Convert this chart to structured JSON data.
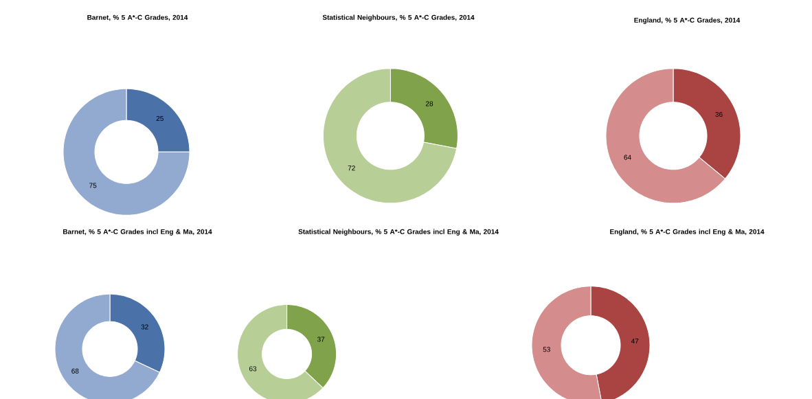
{
  "chart_data": [
    {
      "type": "donut",
      "title": "Barnet, % 5 A*-C Grades, 2014",
      "categories": [
        null,
        null
      ],
      "values": [
        25,
        75
      ],
      "colors": [
        "#4a72a8",
        "#92a9d0"
      ],
      "data_labels": true
    },
    {
      "type": "donut",
      "title": "Statistical Neighbours, % 5 A*-C Grades, 2014",
      "categories": [
        null,
        null
      ],
      "values": [
        28,
        72
      ],
      "colors": [
        "#7fa24a",
        "#b7cf96"
      ],
      "data_labels": true
    },
    {
      "type": "donut",
      "title": "England, % 5 A*-C Grades, 2014",
      "categories": [
        null,
        null
      ],
      "values": [
        36,
        64
      ],
      "colors": [
        "#a94442",
        "#d48d8c"
      ],
      "data_labels": true
    },
    {
      "type": "donut",
      "title": "Barnet, % 5 A*-C Grades incl Eng & Ma, 2014",
      "categories": [
        null,
        null
      ],
      "values": [
        32,
        68
      ],
      "colors": [
        "#4a72a8",
        "#92a9d0"
      ],
      "data_labels": true
    },
    {
      "type": "donut",
      "title": "Statistical Neighbours, % 5 A*-C Grades incl Eng & Ma, 2014",
      "categories": [
        null,
        null
      ],
      "values": [
        37,
        63
      ],
      "colors": [
        "#7fa24a",
        "#b7cf96"
      ],
      "data_labels": true
    },
    {
      "type": "donut",
      "title": "England, % 5 A*-C Grades incl Eng & Ma, 2014",
      "categories": [
        null,
        null
      ],
      "values": [
        47,
        53
      ],
      "colors": [
        "#a94442",
        "#d48d8c"
      ],
      "data_labels": true
    }
  ]
}
